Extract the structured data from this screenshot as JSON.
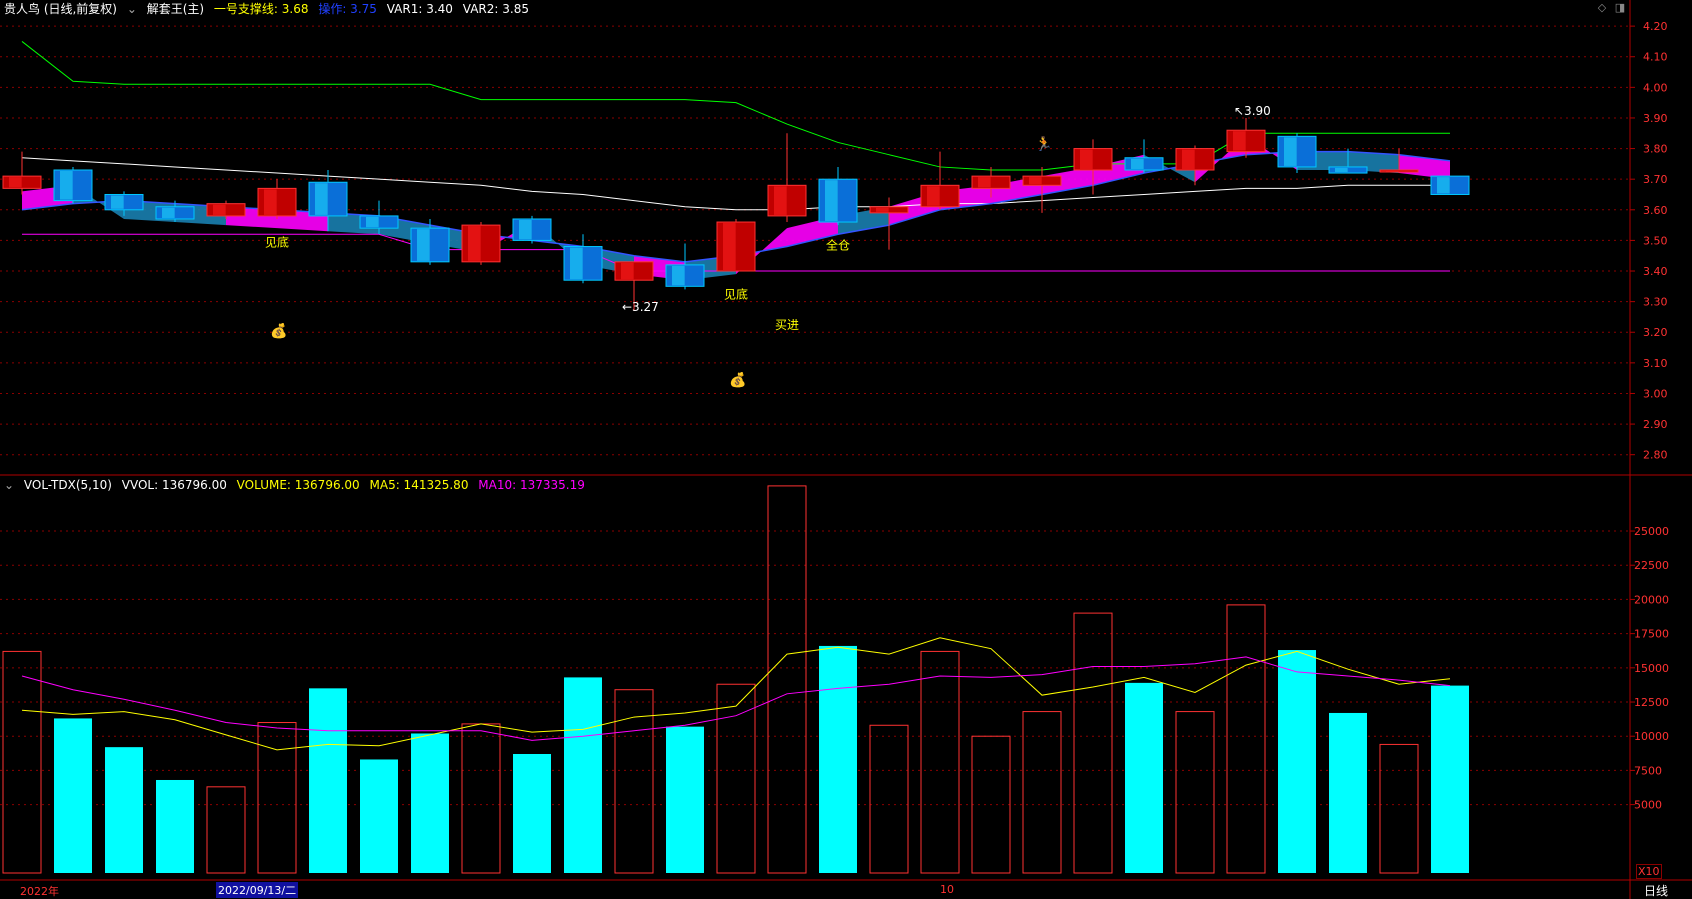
{
  "price_header": {
    "stock": "贵人鸟 (日线,前复权)",
    "indicator": "解套王(主)",
    "support_label": "一号支撑线: 3.68",
    "op_label": "操作: 3.75",
    "var1_label": "VAR1: 3.40",
    "var2_label": "VAR2: 3.85"
  },
  "volume_header": {
    "name": "VOL-TDX(5,10)",
    "vvol_label": "VVOL: 136796.00",
    "volume_label": "VOLUME: 136796.00",
    "ma5_label": "MA5: 141325.80",
    "ma10_label": "MA10: 137335.19"
  },
  "axis_footer": {
    "year_label": "2022年",
    "cursor_date": "2022/09/13/二",
    "month_label": "10",
    "period_label": "日线",
    "multiplier": "X10"
  },
  "toolbar_icons": [
    "diamond-icon",
    "window-icon"
  ],
  "colors": {
    "up": "#ff3232",
    "up_fill": "#c00000",
    "down": "#00c8ff",
    "volume_down": "#00ffff",
    "support_line": "#ff00ff",
    "upper_line": "#00ff00",
    "mid_line": "#ffffff",
    "ma_blue": "#3355ff",
    "band_fill": "#ff00ff",
    "band_alt": "#1a7fb0",
    "signal_text": "#ffff00",
    "grid": "#8b0000"
  },
  "chart_data": [
    {
      "type": "candlestick",
      "title": "贵人鸟 (日线,前复权)",
      "ylim": [
        2.75,
        4.22
      ],
      "y_ticks": [
        "4.20",
        "4.10",
        "4.00",
        "3.90",
        "3.80",
        "3.70",
        "3.60",
        "3.50",
        "3.40",
        "3.30",
        "3.20",
        "3.10",
        "3.00",
        "2.90",
        "2.80"
      ],
      "candles": [
        {
          "open": 3.67,
          "close": 3.71,
          "high": 3.79,
          "low": 3.65
        },
        {
          "open": 3.73,
          "close": 3.63,
          "high": 3.74,
          "low": 3.62
        },
        {
          "open": 3.65,
          "close": 3.6,
          "high": 3.66,
          "low": 3.58
        },
        {
          "open": 3.61,
          "close": 3.57,
          "high": 3.63,
          "low": 3.56
        },
        {
          "open": 3.58,
          "close": 3.62,
          "high": 3.63,
          "low": 3.57
        },
        {
          "open": 3.58,
          "close": 3.67,
          "high": 3.7,
          "low": 3.57
        },
        {
          "open": 3.69,
          "close": 3.58,
          "high": 3.73,
          "low": 3.53
        },
        {
          "open": 3.58,
          "close": 3.54,
          "high": 3.63,
          "low": 3.52
        },
        {
          "open": 3.54,
          "close": 3.43,
          "high": 3.57,
          "low": 3.42
        },
        {
          "open": 3.43,
          "close": 3.55,
          "high": 3.56,
          "low": 3.42
        },
        {
          "open": 3.57,
          "close": 3.5,
          "high": 3.58,
          "low": 3.49
        },
        {
          "open": 3.48,
          "close": 3.37,
          "high": 3.52,
          "low": 3.36
        },
        {
          "open": 3.37,
          "close": 3.43,
          "high": 3.43,
          "low": 3.27
        },
        {
          "open": 3.42,
          "close": 3.35,
          "high": 3.49,
          "low": 3.34
        },
        {
          "open": 3.4,
          "close": 3.56,
          "high": 3.57,
          "low": 3.4
        },
        {
          "open": 3.58,
          "close": 3.68,
          "high": 3.85,
          "low": 3.56
        },
        {
          "open": 3.7,
          "close": 3.56,
          "high": 3.74,
          "low": 3.55
        },
        {
          "open": 3.59,
          "close": 3.61,
          "high": 3.64,
          "low": 3.47
        },
        {
          "open": 3.61,
          "close": 3.68,
          "high": 3.79,
          "low": 3.6
        },
        {
          "open": 3.67,
          "close": 3.71,
          "high": 3.74,
          "low": 3.64
        },
        {
          "open": 3.68,
          "close": 3.71,
          "high": 3.74,
          "low": 3.59
        },
        {
          "open": 3.73,
          "close": 3.8,
          "high": 3.83,
          "low": 3.65
        },
        {
          "open": 3.77,
          "close": 3.73,
          "high": 3.83,
          "low": 3.72
        },
        {
          "open": 3.73,
          "close": 3.8,
          "high": 3.81,
          "low": 3.68
        },
        {
          "open": 3.79,
          "close": 3.86,
          "high": 3.9,
          "low": 3.77
        },
        {
          "open": 3.84,
          "close": 3.74,
          "high": 3.85,
          "low": 3.72
        },
        {
          "open": 3.74,
          "close": 3.72,
          "high": 3.8,
          "low": 3.72
        },
        {
          "open": 3.73,
          "close": 3.73,
          "high": 3.8,
          "low": 3.72
        },
        {
          "open": 3.71,
          "close": 3.65,
          "high": 3.71,
          "low": 3.65
        }
      ],
      "upper_line": [
        4.15,
        4.02,
        4.01,
        4.01,
        4.01,
        4.01,
        4.01,
        4.01,
        4.01,
        3.96,
        3.96,
        3.96,
        3.96,
        3.96,
        3.95,
        3.88,
        3.82,
        3.78,
        3.74,
        3.73,
        3.73,
        3.75,
        3.75,
        3.75,
        3.85,
        3.85,
        3.85,
        3.85,
        3.85
      ],
      "mid_line": [
        3.77,
        3.76,
        3.75,
        3.74,
        3.73,
        3.72,
        3.71,
        3.7,
        3.69,
        3.68,
        3.66,
        3.65,
        3.63,
        3.61,
        3.6,
        3.6,
        3.61,
        3.61,
        3.62,
        3.62,
        3.63,
        3.64,
        3.65,
        3.66,
        3.67,
        3.67,
        3.68,
        3.68,
        3.68
      ],
      "ma_line": [
        3.6,
        3.62,
        3.63,
        3.62,
        3.61,
        3.6,
        3.59,
        3.58,
        3.55,
        3.52,
        3.5,
        3.48,
        3.45,
        3.43,
        3.45,
        3.48,
        3.52,
        3.55,
        3.6,
        3.62,
        3.65,
        3.68,
        3.72,
        3.75,
        3.78,
        3.79,
        3.79,
        3.78,
        3.76
      ],
      "support_line": [
        3.52,
        3.52,
        3.52,
        3.52,
        3.52,
        3.52,
        3.52,
        3.52,
        3.47,
        3.47,
        3.47,
        3.47,
        3.4,
        3.4,
        3.4,
        3.4,
        3.4,
        3.4,
        3.4,
        3.4,
        3.4,
        3.4,
        3.4,
        3.4,
        3.4,
        3.4,
        3.4,
        3.4,
        3.4
      ],
      "annotations": [
        {
          "i": 5,
          "y": 3.48,
          "text": "见底",
          "color": "#ffff00"
        },
        {
          "i": 14,
          "y": 3.31,
          "text": "见底",
          "color": "#ffff00"
        },
        {
          "i": 15,
          "y": 3.21,
          "text": "买进",
          "color": "#ffff00"
        },
        {
          "i": 16,
          "y": 3.47,
          "text": "全仓",
          "color": "#ffff00"
        },
        {
          "i": 12,
          "y": 3.27,
          "text": "←3.27",
          "color": "#ffffff"
        },
        {
          "i": 24,
          "y": 3.91,
          "text": "↖3.90",
          "color": "#ffffff"
        }
      ],
      "icons": [
        {
          "i": 5,
          "y": 3.19,
          "name": "money-bag-icon"
        },
        {
          "i": 14,
          "y": 3.03,
          "name": "money-bag-icon"
        },
        {
          "i": 20,
          "y": 3.8,
          "name": "runner-icon"
        }
      ]
    },
    {
      "type": "bar",
      "title": "VOL-TDX(5,10)",
      "ylim": [
        0,
        28000
      ],
      "y_ticks": [
        "25000",
        "22500",
        "20000",
        "17500",
        "15000",
        "12500",
        "10000",
        "7500",
        "5000"
      ],
      "volumes": [
        16200,
        11300,
        9200,
        6800,
        6300,
        11000,
        13500,
        8300,
        10200,
        10900,
        8700,
        14300,
        13400,
        10700,
        13800,
        28300,
        16600,
        10800,
        16200,
        10000,
        11800,
        19000,
        13900,
        11800,
        19600,
        16300,
        11700,
        9400,
        13700
      ],
      "ma5": [
        11900,
        11600,
        11800,
        11200,
        10100,
        9000,
        9400,
        9300,
        10100,
        10900,
        10300,
        10500,
        11400,
        11700,
        12200,
        16000,
        16500,
        16000,
        17200,
        16400,
        13000,
        13600,
        14300,
        13200,
        15200,
        16200,
        14900,
        13800,
        14200
      ],
      "ma10": [
        14400,
        13400,
        12700,
        11900,
        11000,
        10600,
        10400,
        10400,
        10400,
        10400,
        9700,
        10000,
        10400,
        10800,
        11500,
        13100,
        13500,
        13800,
        14400,
        14300,
        14500,
        15100,
        15100,
        15300,
        15800,
        14700,
        14400,
        14100,
        13700
      ]
    }
  ]
}
